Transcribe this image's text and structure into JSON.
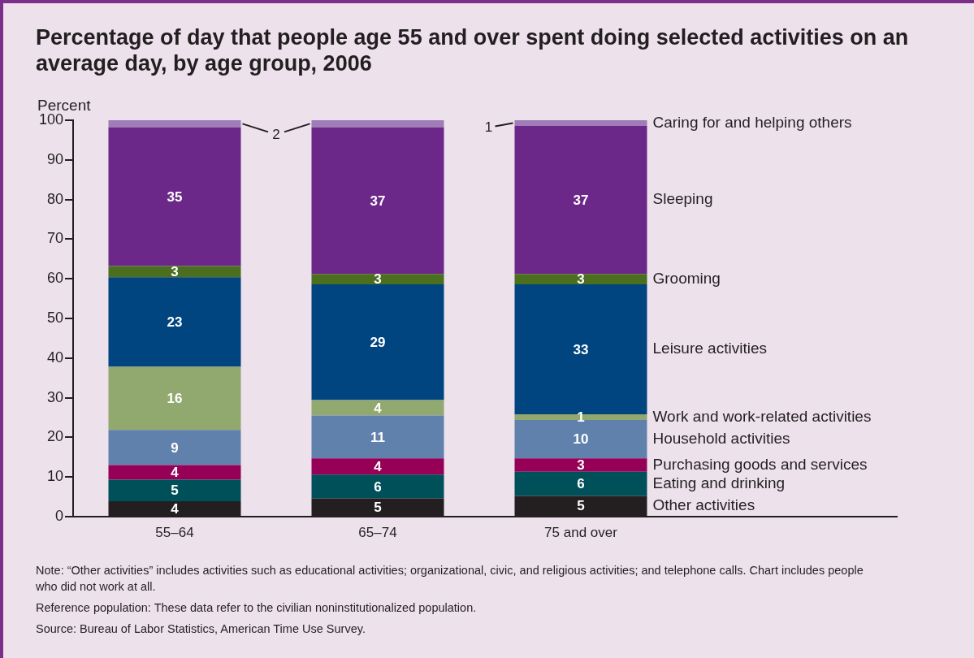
{
  "chart_data": {
    "type": "bar",
    "stacked": true,
    "title": "Percentage of day that people age 55 and over spent doing selected activities on an average day, by age group, 2006",
    "ylabel": "Percent",
    "categories": [
      "55–64",
      "65–74",
      "75 and over"
    ],
    "ylim": [
      0,
      100
    ],
    "yticks": [
      0,
      10,
      20,
      30,
      40,
      50,
      60,
      70,
      80,
      90,
      100
    ],
    "series": [
      {
        "name": "Other activities",
        "color": "#231f20",
        "values": [
          3.9,
          4.6,
          5.2
        ],
        "value_labels": [
          "4",
          "5",
          "5"
        ]
      },
      {
        "name": "Eating and drinking",
        "color": "#00505a",
        "values": [
          5.4,
          6.0,
          6.1
        ],
        "value_labels": [
          "5",
          "6",
          "6"
        ]
      },
      {
        "name": "Purchasing goods and services",
        "color": "#960057",
        "values": [
          3.7,
          4.1,
          3.4
        ],
        "value_labels": [
          "4",
          "4",
          "3"
        ]
      },
      {
        "name": "Household activities",
        "color": "#6181ad",
        "values": [
          8.9,
          10.8,
          9.7
        ],
        "value_labels": [
          "9",
          "11",
          "10"
        ]
      },
      {
        "name": "Work and work-related activities",
        "color": "#91a86e",
        "values": [
          15.9,
          3.9,
          1.4
        ],
        "value_labels": [
          "16",
          "4",
          "1"
        ]
      },
      {
        "name": "Leisure activities",
        "color": "#004480",
        "values": [
          22.6,
          29.2,
          32.8
        ],
        "value_labels": [
          "23",
          "29",
          "33"
        ]
      },
      {
        "name": "Grooming",
        "color": "#4b6f1e",
        "values": [
          2.8,
          2.6,
          2.6
        ],
        "value_labels": [
          "3",
          "3",
          "3"
        ]
      },
      {
        "name": "Sleeping",
        "color": "#6b2889",
        "values": [
          35.0,
          37.0,
          37.4
        ],
        "value_labels": [
          "35",
          "37",
          "37"
        ]
      },
      {
        "name": "Caring for and helping others",
        "color": "#a07cb8",
        "values": [
          1.8,
          1.8,
          1.4
        ],
        "value_labels": [
          "2",
          null,
          "1"
        ]
      }
    ],
    "annotations": [
      "Note: “Other activities” includes activities such as educational activities; organizational, civic, and religious activities; and telephone calls. Chart includes people who did not work at all.",
      "Reference population: These data refer to the civilian noninstitutionalized population.",
      "Source: Bureau of Labor Statistics, American Time Use Survey."
    ]
  }
}
